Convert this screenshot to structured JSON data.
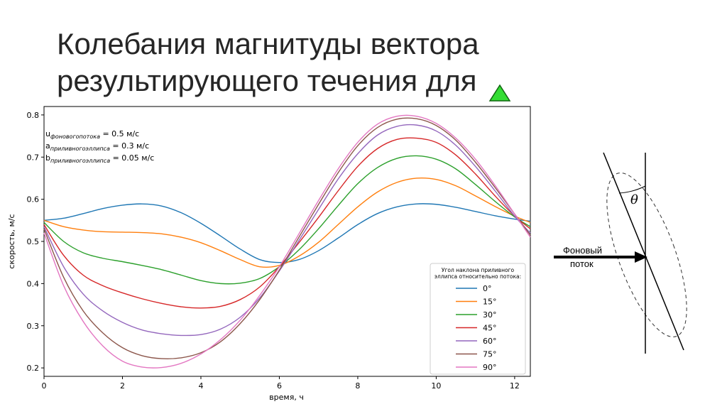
{
  "slide": {
    "title_line1": "Колебания магнитуды вектора",
    "title_line2": "результирующего течения для",
    "marker_icon": "green-triangle-icon",
    "marker_color": "#33dd33"
  },
  "chart_data": {
    "type": "line",
    "xlabel": "время, ч",
    "ylabel": "скорость, м/с",
    "xlim": [
      0,
      12.4
    ],
    "ylim": [
      0.18,
      0.82
    ],
    "xticks": [
      "0",
      "2",
      "4",
      "6",
      "8",
      "10",
      "12"
    ],
    "yticks": [
      "0.2",
      "0.3",
      "0.4",
      "0.5",
      "0.6",
      "0.7",
      "0.8"
    ],
    "grid": false,
    "legend_position": "bottom-right",
    "legend_title": [
      "Угол наклона приливного",
      "эллипса относительно потока:"
    ],
    "annotations": [
      {
        "sym": "u",
        "sub": "фоновогопотока",
        "rest": " =  0.5 м/с"
      },
      {
        "sym": " a",
        "sub": "приливногоэллипса",
        "rest": " = 0.3 м/с"
      },
      {
        "sym": " b",
        "sub": "приливногоэллипса",
        "rest": " = 0.05 м/с"
      }
    ],
    "x": [
      0,
      0.5,
      1,
      1.5,
      2,
      2.5,
      3,
      3.5,
      4,
      4.5,
      5,
      5.5,
      6,
      6.5,
      7,
      7.5,
      8,
      8.5,
      9,
      9.5,
      10,
      10.5,
      11,
      11.5,
      12,
      12.4
    ],
    "series": [
      {
        "name": "0°",
        "color": "#1f77b4",
        "values": [
          0.55,
          0.555,
          0.566,
          0.578,
          0.586,
          0.589,
          0.584,
          0.568,
          0.543,
          0.513,
          0.482,
          0.457,
          0.45,
          0.457,
          0.478,
          0.508,
          0.54,
          0.566,
          0.582,
          0.589,
          0.588,
          0.581,
          0.571,
          0.561,
          0.553,
          0.548
        ]
      },
      {
        "name": "15°",
        "color": "#ff7f0e",
        "values": [
          0.55,
          0.535,
          0.527,
          0.523,
          0.522,
          0.521,
          0.518,
          0.51,
          0.497,
          0.478,
          0.457,
          0.44,
          0.443,
          0.465,
          0.498,
          0.54,
          0.582,
          0.617,
          0.64,
          0.65,
          0.647,
          0.632,
          0.608,
          0.583,
          0.56,
          0.545
        ]
      },
      {
        "name": "30°",
        "color": "#2ca02c",
        "values": [
          0.545,
          0.5,
          0.473,
          0.46,
          0.452,
          0.443,
          0.433,
          0.42,
          0.407,
          0.4,
          0.401,
          0.412,
          0.44,
          0.48,
          0.53,
          0.585,
          0.637,
          0.675,
          0.697,
          0.703,
          0.695,
          0.672,
          0.635,
          0.595,
          0.558,
          0.535
        ]
      },
      {
        "name": "45°",
        "color": "#d62728",
        "values": [
          0.54,
          0.467,
          0.42,
          0.395,
          0.378,
          0.364,
          0.353,
          0.345,
          0.342,
          0.346,
          0.362,
          0.392,
          0.44,
          0.497,
          0.557,
          0.62,
          0.678,
          0.72,
          0.742,
          0.745,
          0.735,
          0.705,
          0.66,
          0.608,
          0.56,
          0.53
        ]
      },
      {
        "name": "60°",
        "color": "#9467bd",
        "values": [
          0.535,
          0.44,
          0.375,
          0.335,
          0.308,
          0.29,
          0.281,
          0.277,
          0.279,
          0.292,
          0.32,
          0.366,
          0.43,
          0.502,
          0.576,
          0.648,
          0.708,
          0.752,
          0.773,
          0.776,
          0.762,
          0.728,
          0.678,
          0.62,
          0.56,
          0.52
        ]
      },
      {
        "name": "75°",
        "color": "#8c564b",
        "values": [
          0.53,
          0.415,
          0.335,
          0.283,
          0.248,
          0.229,
          0.222,
          0.224,
          0.236,
          0.262,
          0.305,
          0.362,
          0.432,
          0.51,
          0.588,
          0.663,
          0.727,
          0.77,
          0.79,
          0.791,
          0.775,
          0.74,
          0.688,
          0.628,
          0.565,
          0.515
        ]
      },
      {
        "name": "90°",
        "color": "#e377c2",
        "values": [
          0.52,
          0.395,
          0.31,
          0.252,
          0.216,
          0.202,
          0.201,
          0.211,
          0.233,
          0.267,
          0.313,
          0.372,
          0.44,
          0.518,
          0.597,
          0.672,
          0.735,
          0.778,
          0.797,
          0.797,
          0.78,
          0.745,
          0.695,
          0.633,
          0.565,
          0.51
        ]
      }
    ]
  },
  "diagram": {
    "flow_label_line1": "Фоновый",
    "flow_label_line2": "поток",
    "angle_label": "θ"
  }
}
